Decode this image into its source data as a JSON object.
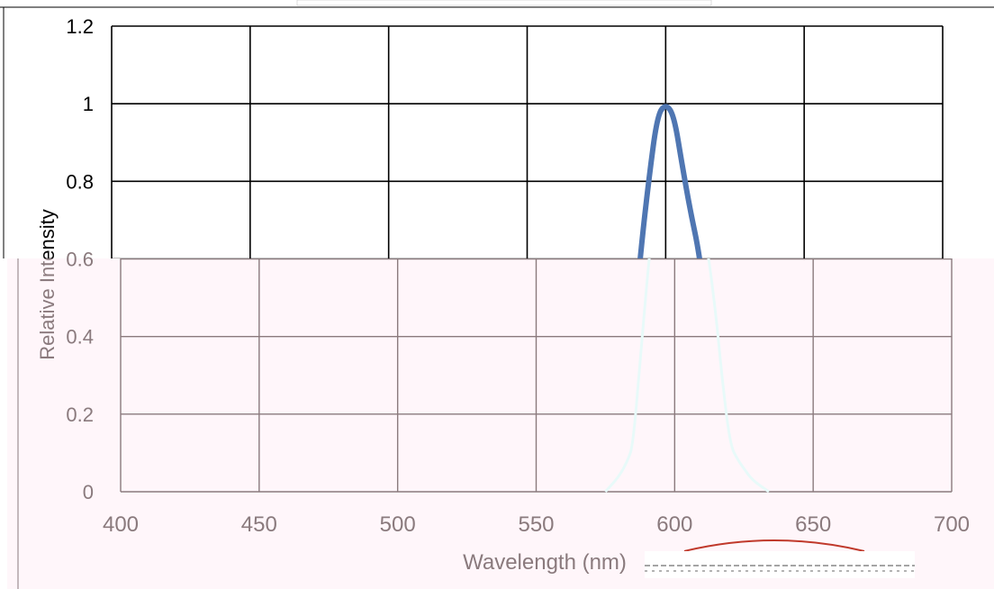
{
  "chart_data": {
    "type": "line",
    "title": "",
    "xlabel": "Wavelength (nm)",
    "ylabel": "Relative Intensity",
    "xlim": [
      400,
      700
    ],
    "ylim": [
      0,
      1.2
    ],
    "x_ticks": [
      "400",
      "450",
      "500",
      "550",
      "600",
      "650",
      "700"
    ],
    "y_ticks": [
      "0",
      "0.2",
      "0.4",
      "0.6",
      "0.8",
      "1",
      "1.2"
    ],
    "grid": true,
    "legend": "none",
    "series": [
      {
        "x": [
          575,
          580,
          583,
          585,
          588,
          591,
          594,
          597,
          600,
          603,
          606,
          609,
          612,
          615,
          617,
          620,
          623,
          625,
          628,
          634
        ],
        "y": [
          0.0,
          0.04,
          0.08,
          0.12,
          0.38,
          0.62,
          0.81,
          0.97,
          1.0,
          0.97,
          0.84,
          0.72,
          0.62,
          0.45,
          0.3,
          0.12,
          0.08,
          0.06,
          0.03,
          0.0
        ]
      }
    ],
    "colors": {
      "line_upper": "#4f76b2",
      "line_lower": "#e8faf9",
      "grid_upper": "#000000",
      "grid_lower": "#8a7a7d",
      "plot_bg_lower": "#fff6fa",
      "text_upper": "#000000",
      "text_lower": "#8a7a7d"
    }
  }
}
